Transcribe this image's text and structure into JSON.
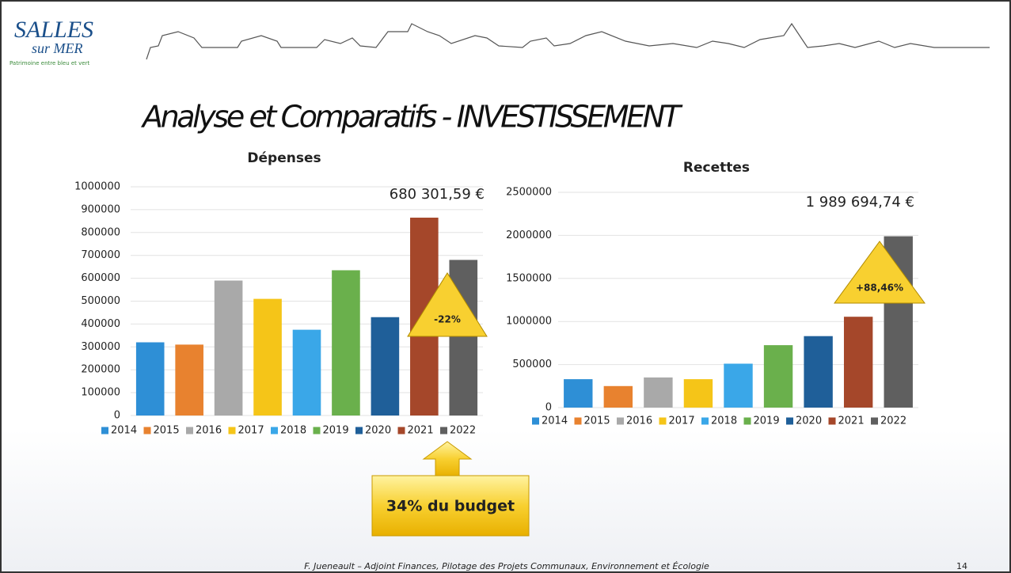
{
  "logo": {
    "name": "SALLES",
    "sub": "sur MER",
    "tagline": "Patrimoine entre bleu et vert"
  },
  "title": "Analyse et Comparatifs - INVESTISSEMENT",
  "callout": "34% du budget",
  "footer": "F. Jueneault – Adjoint Finances, Pilotage des Projets Communaux, Environnement et Écologie",
  "page_number": "14",
  "chart_data": [
    {
      "type": "bar",
      "title": "Dépenses",
      "categories": [
        "2014",
        "2015",
        "2016",
        "2017",
        "2018",
        "2019",
        "2020",
        "2021",
        "2022"
      ],
      "values": [
        320000,
        310000,
        590000,
        510000,
        375000,
        635000,
        430000,
        865000,
        680301.59
      ],
      "value_labels": [
        null,
        null,
        null,
        null,
        null,
        null,
        null,
        null,
        "680 301,59 €"
      ],
      "colors": [
        "#2e8fd6",
        "#e8822f",
        "#a9a9a9",
        "#f5c518",
        "#3aa7e8",
        "#6ab04c",
        "#1f5f99",
        "#a5472a",
        "#5f5f5f"
      ],
      "annotation": "-22%",
      "ylim": [
        0,
        1000000
      ],
      "yticks": [
        0,
        100000,
        200000,
        300000,
        400000,
        500000,
        600000,
        700000,
        800000,
        900000,
        1000000
      ],
      "grid": true,
      "legend": "bottom"
    },
    {
      "type": "bar",
      "title": "Recettes",
      "categories": [
        "2014",
        "2015",
        "2016",
        "2017",
        "2018",
        "2019",
        "2020",
        "2021",
        "2022"
      ],
      "values": [
        330000,
        250000,
        350000,
        330000,
        510000,
        725000,
        830000,
        1055000,
        1989694.74
      ],
      "value_labels": [
        null,
        null,
        null,
        null,
        null,
        null,
        null,
        null,
        "1 989 694,74 €"
      ],
      "colors": [
        "#2e8fd6",
        "#e8822f",
        "#a9a9a9",
        "#f5c518",
        "#3aa7e8",
        "#6ab04c",
        "#1f5f99",
        "#a5472a",
        "#5f5f5f"
      ],
      "annotation": "+88,46%",
      "ylim": [
        0,
        2500000
      ],
      "yticks": [
        0,
        500000,
        1000000,
        1500000,
        2000000,
        2500000
      ],
      "grid": true,
      "legend": "bottom"
    }
  ]
}
